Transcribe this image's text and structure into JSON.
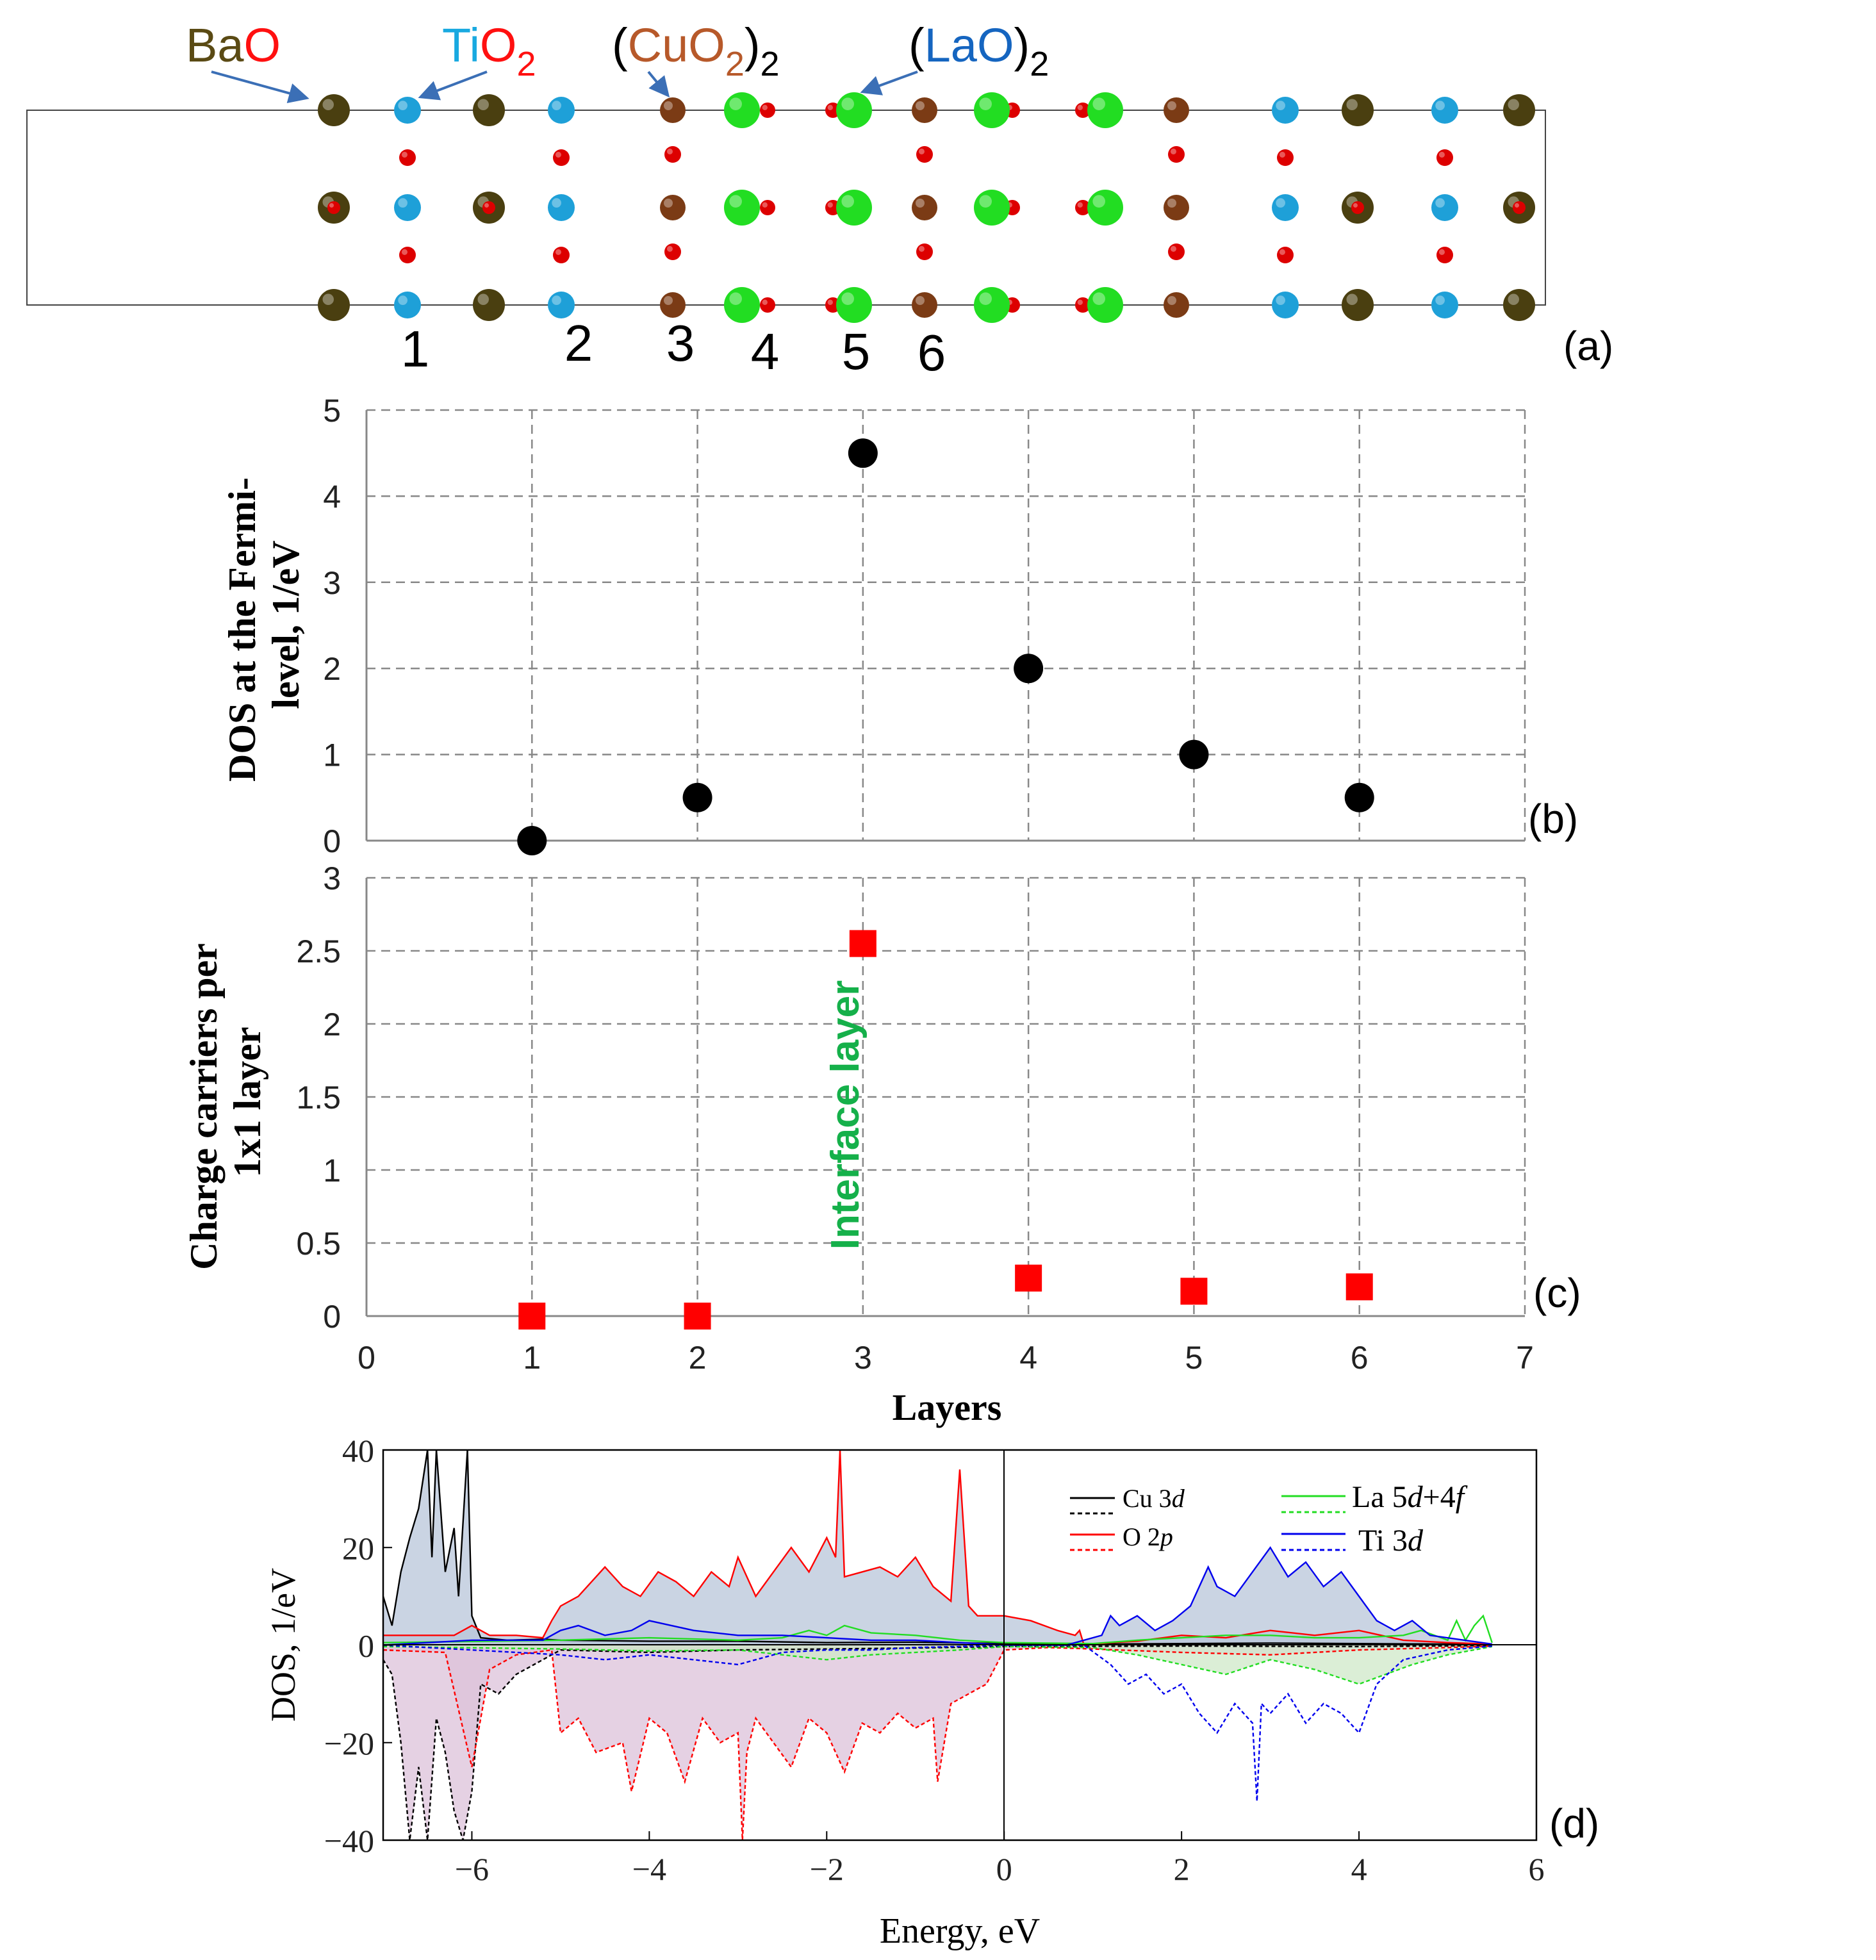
{
  "colors": {
    "ba": "#4a3f10",
    "ti": "#1ea0d8",
    "cu": "#7b3b15",
    "la": "#22dd22",
    "o": "#dd0000",
    "bao_label": "#5a4a14",
    "ti_label": "#19a9e0",
    "cu_label": "#b7592a",
    "la_label": "#1565c0",
    "o_label": "#ff1010",
    "dos_b": "#000000",
    "carrier_c": "#ff0000",
    "interface": "#15b04a",
    "cu3d": "#000000",
    "o2p": "#ff0000",
    "ti3d": "#0000ee",
    "fill_up": "#b8c5d9",
    "fill_down": "#dcc2d9",
    "fill_green": "#cfe8c8",
    "grid": "#888888",
    "arrow": "#3b6fb6"
  },
  "structure": {
    "panel_label": "(a)",
    "labels": {
      "bao_1": "Ba",
      "bao_2": "O",
      "tio2_1": "Ti",
      "tio2_2": "O",
      "tio2_sub": "2",
      "cuo2_open": "(",
      "cuo2_1": "Cu",
      "cuo2_2": "O",
      "cuo2_sub": "2",
      "cuo2_close": ")",
      "cuo2_outer": "2",
      "lao_open": "(",
      "lao_1": "La",
      "lao_2": "O",
      "lao_close": ")",
      "lao_outer": "2"
    },
    "layer_numbers": [
      "1",
      "2",
      "3",
      "4",
      "5",
      "6"
    ]
  },
  "chart_data": [
    {
      "id": "b",
      "type": "scatter",
      "panel_label": "(b)",
      "ylabel_line1": "DOS at the Fermi-",
      "ylabel_line2": "level, 1/eV",
      "x": [
        1,
        2,
        3,
        4,
        5,
        6
      ],
      "y": [
        0,
        0.5,
        4.5,
        2,
        1,
        0.5
      ],
      "xlim": [
        0,
        7
      ],
      "ylim": [
        0,
        5
      ],
      "yticks": [
        "0",
        "1",
        "2",
        "3",
        "4",
        "5"
      ],
      "grid": true,
      "marker": "circle"
    },
    {
      "id": "c",
      "type": "scatter",
      "panel_label": "(c)",
      "ylabel_line1": "Charge carriers  per",
      "ylabel_line2": "1x1 layer",
      "xlabel": "Layers",
      "annotation": "Interface layer",
      "x": [
        1,
        2,
        3,
        4,
        5,
        6
      ],
      "y": [
        0,
        0,
        2.55,
        0.26,
        0.17,
        0.2
      ],
      "xlim": [
        0,
        7
      ],
      "ylim": [
        0,
        3
      ],
      "xticks": [
        "0",
        "1",
        "2",
        "3",
        "4",
        "5",
        "6",
        "7"
      ],
      "yticks": [
        "0",
        "0.5",
        "1",
        "1.5",
        "2",
        "2.5",
        "3"
      ],
      "grid": true,
      "marker": "square"
    },
    {
      "id": "d",
      "type": "line",
      "panel_label": "(d)",
      "xlabel": "Energy, eV",
      "ylabel": "DOS, 1/eV",
      "xlim": [
        -7,
        6
      ],
      "ylim": [
        -40,
        40
      ],
      "xticks": [
        "−6",
        "−4",
        "−2",
        "0",
        "2",
        "4",
        "6"
      ],
      "yticks": [
        "40",
        "20",
        "0",
        "−20",
        "−40"
      ],
      "legend": {
        "cu3d": "Cu 3",
        "o2p": "O 2",
        "la_a": "La 5",
        "la_b": "+4",
        "ti3d": "Ti 3",
        "it_d": "d",
        "it_p": "p",
        "it_f": "f"
      },
      "legend_position": "top-right",
      "series": [
        {
          "name": "Cu 3d (up)",
          "x": [
            -7,
            -6.9,
            -6.8,
            -6.7,
            -6.6,
            -6.5,
            -6.45,
            -6.4,
            -6.3,
            -6.2,
            -6.15,
            -6.05,
            -6.0,
            -5.9,
            -5.6,
            -5.2,
            -5.0,
            -4.0,
            -3.0,
            -2.0,
            -1.0,
            0,
            1,
            2,
            3,
            4,
            5,
            5.5
          ],
          "y": [
            10,
            4,
            15,
            22,
            28,
            40,
            18,
            40,
            15,
            24,
            10,
            40,
            6,
            1.5,
            1,
            1.2,
            1,
            0.8,
            0.8,
            0.5,
            0.6,
            0.3,
            0.2,
            0.3,
            0.4,
            0.3,
            0.2,
            0.1
          ]
        },
        {
          "name": "Cu 3d (down)",
          "x": [
            -7,
            -6.9,
            -6.8,
            -6.7,
            -6.6,
            -6.5,
            -6.4,
            -6.3,
            -6.2,
            -6.1,
            -6.0,
            -5.9,
            -5.7,
            -5.5,
            -5.3,
            -5.0,
            -4.0,
            -3.0,
            -2.0,
            -1.0,
            0,
            2,
            4,
            5.5
          ],
          "y": [
            -3,
            -6,
            -20,
            -40,
            -25,
            -40,
            -15,
            -22,
            -34,
            -40,
            -30,
            -8,
            -10,
            -6,
            -4,
            -1,
            -1.5,
            -1,
            -0.8,
            -0.6,
            -0.3,
            -0.2,
            -0.3,
            -0.1
          ]
        },
        {
          "name": "O 2p (up)",
          "x": [
            -7,
            -6.2,
            -6.0,
            -5.8,
            -5.5,
            -5.2,
            -5.1,
            -5.0,
            -4.8,
            -4.6,
            -4.5,
            -4.3,
            -4.1,
            -3.9,
            -3.7,
            -3.5,
            -3.3,
            -3.1,
            -3.0,
            -2.8,
            -2.6,
            -2.4,
            -2.2,
            -2.0,
            -1.9,
            -1.85,
            -1.8,
            -1.6,
            -1.4,
            -1.2,
            -1.0,
            -0.8,
            -0.6,
            -0.5,
            -0.4,
            -0.3,
            0,
            0.3,
            0.6,
            0.8,
            0.85,
            0.9,
            1.2,
            1.5,
            2.0,
            2.5,
            3.0,
            3.5,
            4.0,
            4.5,
            5.0,
            5.5
          ],
          "y": [
            2,
            2,
            4,
            2,
            2,
            1.5,
            5,
            8,
            10,
            14,
            16,
            12,
            10,
            15,
            13,
            10,
            15,
            12,
            18,
            10,
            15,
            20,
            15,
            22,
            18,
            40,
            14,
            15,
            16,
            14,
            18,
            12,
            9,
            36,
            8,
            6,
            6,
            5,
            3,
            2,
            3,
            0,
            0.5,
            0.8,
            2,
            1.5,
            3,
            2,
            3,
            1,
            0.5,
            0.2
          ]
        },
        {
          "name": "O 2p (down)",
          "x": [
            -7,
            -6.3,
            -6.0,
            -5.8,
            -5.5,
            -5.1,
            -5.0,
            -4.8,
            -4.6,
            -4.3,
            -4.2,
            -4.0,
            -3.8,
            -3.6,
            -3.4,
            -3.2,
            -3.0,
            -2.95,
            -2.9,
            -2.8,
            -2.6,
            -2.4,
            -2.2,
            -2.0,
            -1.8,
            -1.6,
            -1.4,
            -1.2,
            -1.0,
            -0.8,
            -0.75,
            -0.6,
            -0.4,
            -0.2,
            0,
            0.5,
            1,
            2,
            3,
            4,
            5,
            5.5
          ],
          "y": [
            -1,
            -1.5,
            -25,
            -5,
            -2,
            -1,
            -18,
            -15,
            -22,
            -20,
            -30,
            -15,
            -18,
            -28,
            -15,
            -20,
            -18,
            -40,
            -22,
            -15,
            -20,
            -25,
            -15,
            -18,
            -26,
            -16,
            -18,
            -14,
            -17,
            -15,
            -28,
            -12,
            -10,
            -8,
            -1,
            -0.5,
            -0.8,
            -1.5,
            -2,
            -1,
            -0.5,
            -0.2
          ]
        },
        {
          "name": "La 5d+4f (up)",
          "x": [
            -7,
            -5,
            -4,
            -3,
            -2.5,
            -2.2,
            -2.0,
            -1.8,
            -1.5,
            -1.0,
            -0.5,
            0,
            1.0,
            1.5,
            2.0,
            2.5,
            3.0,
            3.5,
            4.0,
            4.5,
            4.7,
            5.0,
            5.1,
            5.2,
            5.3,
            5.4,
            5.5
          ],
          "y": [
            0.5,
            1,
            1.5,
            1,
            1.5,
            3,
            2,
            4,
            2.5,
            2,
            1,
            0.5,
            0.3,
            1,
            1.5,
            2,
            2,
            1.5,
            1.5,
            2,
            3,
            1,
            5,
            1,
            4,
            6,
            0.5
          ]
        },
        {
          "name": "La 5d+4f (down)",
          "x": [
            -7,
            -5,
            -4,
            -3,
            -2.5,
            -2.0,
            -1.5,
            -1.0,
            -0.5,
            0,
            1.0,
            1.5,
            2.0,
            2.5,
            3.0,
            3.5,
            4.0,
            4.3,
            4.6,
            5.0,
            5.5
          ],
          "y": [
            -0.3,
            -0.8,
            -1.2,
            -1,
            -2,
            -3,
            -2,
            -1.5,
            -1,
            -0.3,
            -0.5,
            -2,
            -4,
            -6,
            -3,
            -5,
            -8,
            -6,
            -4,
            -2,
            -0.3
          ]
        },
        {
          "name": "Ti 3d (up)",
          "x": [
            -7,
            -6,
            -5.2,
            -5.0,
            -4.8,
            -4.5,
            -4.2,
            -4.0,
            -3.5,
            -3.0,
            -2.5,
            -2.0,
            -1.5,
            -1.0,
            -0.5,
            0,
            0.7,
            1.1,
            1.2,
            1.3,
            1.5,
            1.7,
            1.9,
            2.1,
            2.3,
            2.4,
            2.6,
            2.8,
            3.0,
            3.2,
            3.4,
            3.6,
            3.8,
            4.0,
            4.2,
            4.4,
            4.6,
            4.8,
            5.5
          ],
          "y": [
            0,
            1,
            1,
            3,
            4,
            2,
            3,
            5,
            3,
            2,
            2,
            1.5,
            1,
            1,
            0.5,
            0,
            0,
            2,
            6,
            4,
            6,
            3,
            5,
            8,
            16,
            12,
            10,
            15,
            20,
            14,
            17,
            12,
            15,
            10,
            5,
            3,
            5,
            2,
            0.2
          ]
        },
        {
          "name": "Ti 3d (down)",
          "x": [
            -7,
            -6,
            -5.0,
            -4.5,
            -4.0,
            -3.5,
            -3.0,
            -2.5,
            -2.0,
            -1.5,
            -1.0,
            -0.5,
            0,
            0.9,
            1.2,
            1.4,
            1.6,
            1.8,
            2.0,
            2.2,
            2.4,
            2.6,
            2.8,
            2.85,
            2.9,
            3.0,
            3.2,
            3.4,
            3.6,
            3.8,
            4.0,
            4.2,
            4.5,
            5.0,
            5.5
          ],
          "y": [
            0,
            -1,
            -2,
            -3,
            -2,
            -3,
            -4,
            -1.5,
            -1,
            -1,
            -0.5,
            -0.3,
            0,
            0,
            -4,
            -8,
            -6,
            -10,
            -8,
            -14,
            -18,
            -12,
            -16,
            -32,
            -12,
            -14,
            -10,
            -16,
            -12,
            -14,
            -18,
            -8,
            -3,
            -1,
            -0.2
          ]
        }
      ]
    }
  ]
}
